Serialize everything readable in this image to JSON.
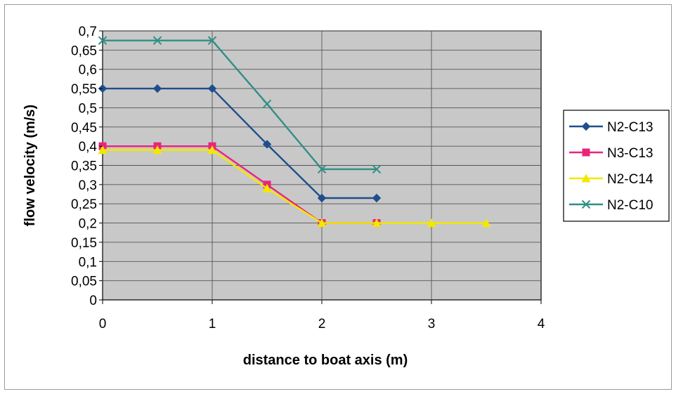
{
  "chart_data": {
    "type": "line",
    "xlabel": "distance to boat axis (m)",
    "ylabel": "flow velocity (m/s)",
    "xlim": [
      0,
      4
    ],
    "ylim": [
      0,
      0.7
    ],
    "x_ticks": [
      "0",
      "1",
      "2",
      "3",
      "4"
    ],
    "y_ticks": [
      "0",
      "0,05",
      "0,1",
      "0,15",
      "0,2",
      "0,25",
      "0,3",
      "0,35",
      "0,4",
      "0,45",
      "0,5",
      "0,55",
      "0,6",
      "0,65",
      "0,7"
    ],
    "grid": true,
    "legend_position": "right",
    "series": [
      {
        "name": "N2-C13",
        "marker": "diamond",
        "color": "#1f4e8c",
        "x": [
          0,
          0.5,
          1,
          1.5,
          2,
          2.5
        ],
        "y": [
          0.55,
          0.55,
          0.55,
          0.405,
          0.265,
          0.265
        ]
      },
      {
        "name": "N3-C13",
        "marker": "square",
        "color": "#e8257a",
        "x": [
          0,
          0.5,
          1,
          1.5,
          2,
          2.5
        ],
        "y": [
          0.4,
          0.4,
          0.4,
          0.3,
          0.2,
          0.2
        ]
      },
      {
        "name": "N2-C14",
        "marker": "triangle",
        "color": "#f2e800",
        "x": [
          0,
          0.5,
          1,
          1.5,
          2,
          2.5,
          3,
          3.5
        ],
        "y": [
          0.39,
          0.39,
          0.39,
          0.29,
          0.2,
          0.2,
          0.2,
          0.2
        ]
      },
      {
        "name": "N2-C10",
        "marker": "x",
        "color": "#2f8f86",
        "x": [
          0,
          0.5,
          1,
          1.5,
          2,
          2.5
        ],
        "y": [
          0.675,
          0.675,
          0.675,
          0.51,
          0.34,
          0.34
        ]
      }
    ]
  },
  "colors": {
    "plot_background": "#c8c8c8",
    "grid": "#555555"
  }
}
